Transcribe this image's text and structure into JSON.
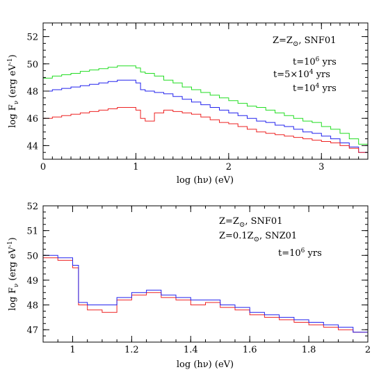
{
  "chart_data": [
    {
      "type": "line",
      "title": "",
      "xlabel": "log (hν) (eV)",
      "ylabel": "log F",
      "ylabel_sub": "ν",
      "ylabel_units": "(erg eV",
      "ylabel_exp": "-1",
      "ylabel_close": ")",
      "xlim": [
        0,
        3.5
      ],
      "ylim": [
        43,
        53
      ],
      "xticks": [
        0,
        1,
        2,
        3
      ],
      "yticks": [
        44,
        46,
        48,
        50,
        52
      ],
      "grid": false,
      "annotation": {
        "text_prefix": "Z=Z",
        "symbol": "⊙",
        "text_suffix": ", SNF01",
        "color": "#000000"
      },
      "legend_placement": "top-right",
      "series": [
        {
          "name": "t=10",
          "name_exp": "6",
          "name_suffix": " yrs",
          "color": "#22dd22",
          "x": [
            0,
            0.1,
            0.2,
            0.3,
            0.4,
            0.5,
            0.6,
            0.7,
            0.8,
            0.9,
            1.0,
            1.05,
            1.1,
            1.2,
            1.3,
            1.4,
            1.5,
            1.6,
            1.7,
            1.8,
            1.9,
            2.0,
            2.1,
            2.2,
            2.3,
            2.4,
            2.5,
            2.6,
            2.7,
            2.8,
            2.9,
            3.0,
            3.1,
            3.2,
            3.3,
            3.4,
            3.5
          ],
          "y": [
            48.95,
            49.1,
            49.2,
            49.3,
            49.45,
            49.55,
            49.65,
            49.75,
            49.85,
            49.85,
            49.7,
            49.4,
            49.3,
            49.1,
            48.8,
            48.6,
            48.3,
            48.1,
            47.9,
            47.7,
            47.5,
            47.3,
            47.1,
            46.9,
            46.8,
            46.6,
            46.4,
            46.2,
            46.0,
            45.8,
            45.7,
            45.4,
            45.2,
            44.9,
            44.5,
            44.1,
            43.6
          ]
        },
        {
          "name": "t=5×10",
          "name_exp": "4",
          "name_suffix": " yrs",
          "color": "#2222ee",
          "x": [
            0,
            0.1,
            0.2,
            0.3,
            0.4,
            0.5,
            0.6,
            0.7,
            0.8,
            0.9,
            1.0,
            1.05,
            1.1,
            1.2,
            1.3,
            1.4,
            1.5,
            1.6,
            1.7,
            1.8,
            1.9,
            2.0,
            2.1,
            2.2,
            2.3,
            2.4,
            2.5,
            2.6,
            2.7,
            2.8,
            2.9,
            3.0,
            3.1,
            3.2,
            3.3,
            3.4,
            3.5
          ],
          "y": [
            48.0,
            48.1,
            48.2,
            48.3,
            48.4,
            48.5,
            48.6,
            48.7,
            48.8,
            48.8,
            48.6,
            48.1,
            48.0,
            47.9,
            47.8,
            47.6,
            47.4,
            47.2,
            47.0,
            46.8,
            46.6,
            46.4,
            46.2,
            46.0,
            45.8,
            45.7,
            45.5,
            45.4,
            45.2,
            45.0,
            44.9,
            44.7,
            44.5,
            44.2,
            43.9,
            43.5,
            43.1
          ]
        },
        {
          "name": "t=10",
          "name_exp": "4",
          "name_suffix": " yrs",
          "color": "#ee2222",
          "x": [
            0,
            0.1,
            0.2,
            0.3,
            0.4,
            0.5,
            0.6,
            0.7,
            0.8,
            0.9,
            1.0,
            1.05,
            1.1,
            1.2,
            1.3,
            1.4,
            1.5,
            1.6,
            1.7,
            1.8,
            1.9,
            2.0,
            2.1,
            2.2,
            2.3,
            2.4,
            2.5,
            2.6,
            2.7,
            2.8,
            2.9,
            3.0,
            3.1,
            3.2,
            3.3,
            3.4,
            3.5
          ],
          "y": [
            46.0,
            46.1,
            46.2,
            46.3,
            46.4,
            46.5,
            46.6,
            46.7,
            46.8,
            46.8,
            46.6,
            46.0,
            45.8,
            46.4,
            46.6,
            46.5,
            46.4,
            46.3,
            46.1,
            45.9,
            45.7,
            45.6,
            45.4,
            45.2,
            45.0,
            44.9,
            44.8,
            44.7,
            44.6,
            44.5,
            44.4,
            44.3,
            44.2,
            44.0,
            43.8,
            43.5,
            43.1
          ]
        }
      ]
    },
    {
      "type": "line",
      "title": "",
      "xlabel": "log (hν) (eV)",
      "ylabel": "log F",
      "ylabel_sub": "ν",
      "ylabel_units": "(erg eV",
      "ylabel_exp": "-1",
      "ylabel_close": ")",
      "xlim": [
        0.9,
        2.0
      ],
      "ylim": [
        46.5,
        52
      ],
      "xticks": [
        1,
        1.2,
        1.4,
        1.6,
        1.8,
        2
      ],
      "yticks": [
        47,
        48,
        49,
        50,
        51,
        52
      ],
      "grid": false,
      "annotation": {
        "text_prefix": "t=10",
        "exp": "6",
        "text_suffix": " yrs",
        "color": "#000000"
      },
      "legend_placement": "top-right",
      "series": [
        {
          "name": "Z=Z",
          "name_symbol": "⊙",
          "name_suffix": ", SNF01",
          "color": "#ee2222",
          "x": [
            0.9,
            0.95,
            1.0,
            1.02,
            1.05,
            1.1,
            1.15,
            1.2,
            1.25,
            1.3,
            1.35,
            1.4,
            1.45,
            1.5,
            1.55,
            1.6,
            1.65,
            1.7,
            1.75,
            1.8,
            1.85,
            1.9,
            1.95,
            2.0
          ],
          "y": [
            49.9,
            49.8,
            49.5,
            48.0,
            47.8,
            47.7,
            48.2,
            48.4,
            48.5,
            48.3,
            48.2,
            48.0,
            48.1,
            47.9,
            47.8,
            47.6,
            47.5,
            47.4,
            47.3,
            47.2,
            47.1,
            47.0,
            46.9,
            46.7
          ]
        },
        {
          "name": "Z=0.1Z",
          "name_symbol": "⊙",
          "name_suffix": ", SNZ01",
          "color": "#2222ee",
          "x": [
            0.9,
            0.95,
            1.0,
            1.02,
            1.05,
            1.1,
            1.15,
            1.2,
            1.25,
            1.3,
            1.35,
            1.4,
            1.45,
            1.5,
            1.55,
            1.6,
            1.65,
            1.7,
            1.75,
            1.8,
            1.85,
            1.9,
            1.95,
            2.0
          ],
          "y": [
            50.0,
            49.9,
            49.6,
            48.1,
            48.0,
            48.0,
            48.3,
            48.5,
            48.6,
            48.4,
            48.3,
            48.2,
            48.2,
            48.0,
            47.9,
            47.7,
            47.6,
            47.5,
            47.4,
            47.3,
            47.2,
            47.1,
            46.9,
            46.8
          ]
        }
      ]
    }
  ]
}
